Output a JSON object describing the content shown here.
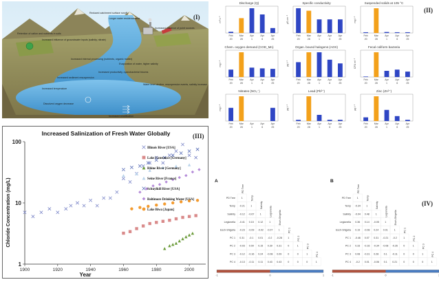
{
  "panel_i": {
    "label": "(I)",
    "annotations": [
      "Reduced catchment surface runoff",
      "Longer water residence time",
      "Increased influence of point sources",
      "Retention of cation and nutrients in soils",
      "Increased influence of groundwater inputs (salinity, nitrate)",
      "Increased internal processing (nutrients, organic matter)",
      "Evaporation of water, higher salinity",
      "Increased productivity, cyanobacterial blooms",
      "Water level decline, resuspension events, salinity increase",
      "Increased temperature",
      "Increased sediment resuspension",
      "Dissolved oxygen decrease",
      "Increased stratification"
    ]
  },
  "panel_ii": {
    "label": "(II)",
    "chart_data": [
      {
        "type": "bar",
        "title": "Discharge (Q)",
        "ylabel": "m³ s⁻¹",
        "categories": [
          "Feb 20",
          "Mar 28",
          "Apr 1",
          "Apr 6",
          "Apr 25"
        ],
        "values": [
          5,
          60,
          100,
          75,
          20
        ],
        "highlight_index": 1
      },
      {
        "type": "bar",
        "title": "Specific conductivity",
        "ylabel": "µS cm⁻¹",
        "categories": [
          "Feb 20",
          "Mar 28",
          "Apr 1",
          "Apr 6",
          "Apr 25"
        ],
        "values": [
          100,
          90,
          55,
          55,
          55
        ],
        "highlight_index": 1
      },
      {
        "type": "bar",
        "title": "Suspended solids at 105 °C",
        "ylabel": "mg l⁻¹",
        "categories": [
          "Feb 20",
          "Mar 28",
          "Apr 1",
          "Apr 6",
          "Apr 25"
        ],
        "values": [
          3,
          100,
          4,
          3,
          3
        ],
        "highlight_index": 1
      },
      {
        "type": "bar",
        "title": "Chem. oxygen demand (COD_Mn)",
        "ylabel": "mg l⁻¹",
        "categories": [
          "Feb 20",
          "Mar 28",
          "Apr 1",
          "Apr 6",
          "Apr 25"
        ],
        "values": [
          30,
          100,
          38,
          35,
          33
        ],
        "highlight_index": 1
      },
      {
        "type": "bar",
        "title": "Organ. bound halogens (AOX)",
        "ylabel": "µg l⁻¹",
        "categories": [
          "Feb 20",
          "Mar 28",
          "Apr 1",
          "Apr 6",
          "Apr 25"
        ],
        "values": [
          60,
          100,
          100,
          70,
          55
        ],
        "highlight_index": 1
      },
      {
        "type": "bar",
        "title": "Fecal coliform bacteria",
        "ylabel": "CFU ml⁻¹",
        "categories": [
          "Feb 20",
          "Mar 28",
          "Apr 1",
          "Apr 6",
          "Apr 25"
        ],
        "values": [
          2,
          100,
          25,
          30,
          22
        ],
        "highlight_index": 1
      },
      {
        "type": "bar",
        "title": "Nitrates (NO₃⁻)",
        "ylabel": "mg l⁻¹",
        "categories": [
          "Feb 20",
          "Mar 28",
          "Apr 1",
          "Apr 6",
          "Apr 25"
        ],
        "values": [
          40,
          75,
          0,
          0,
          40
        ],
        "highlight_index": 1
      },
      {
        "type": "bar",
        "title": "Lead (Pb²⁺)",
        "ylabel": "µg l⁻¹",
        "categories": [
          "Feb 20",
          "Mar 28",
          "Apr 1",
          "Apr 6",
          "Apr 25"
        ],
        "values": [
          5,
          100,
          25,
          5,
          5
        ],
        "highlight_index": 1
      },
      {
        "type": "bar",
        "title": "Zinc (Zn²⁺)",
        "ylabel": "µg l⁻¹",
        "categories": [
          "Feb 20",
          "Mar 28",
          "Apr 1",
          "Apr 6",
          "Apr 25"
        ],
        "values": [
          15,
          100,
          45,
          20,
          5
        ],
        "highlight_index": 1
      }
    ]
  },
  "panel_iii": {
    "label": "(III)",
    "chart_data": {
      "type": "scatter",
      "title": "Increased Salinization of Fresh Water Globally",
      "xlabel": "Year",
      "ylabel": "Chloride Concentration (mg/L)",
      "xlim": [
        1900,
        2010
      ],
      "ylim": [
        1,
        100
      ],
      "yscale": "log",
      "xticks": [
        "1900",
        "1920",
        "1940",
        "1960",
        "1980",
        "2000"
      ],
      "yticks": [
        "1",
        "10",
        "100"
      ],
      "series": [
        {
          "name": "Illinois River [USA]",
          "color": "#7b86c8",
          "marker": "x",
          "x": [
            1900,
            1905,
            1910,
            1915,
            1920,
            1925,
            1928,
            1932,
            1936,
            1940,
            1944,
            1948,
            1952,
            1956,
            1960,
            1964,
            1968,
            1972,
            1976,
            1980,
            1984,
            1988,
            1992,
            1996,
            2000,
            2004
          ],
          "y": [
            7,
            6,
            7,
            8,
            7,
            8,
            9,
            10,
            9,
            11,
            9,
            12,
            12,
            15,
            25,
            22,
            30,
            40,
            45,
            55,
            45,
            60,
            70,
            90,
            60,
            55
          ]
        },
        {
          "name": "Lake Constance [Germany]",
          "color": "#d98a8a",
          "marker": "square",
          "x": [
            1960,
            1964,
            1968,
            1972,
            1976,
            1980,
            1984,
            1988,
            1992,
            1996,
            2000,
            2004
          ],
          "y": [
            3.2,
            3.4,
            3.8,
            4.2,
            4.6,
            4.8,
            5,
            5.2,
            5.5,
            5.8,
            6,
            6.2
          ]
        },
        {
          "name": "Rhine River [Germany]",
          "color": "#6b9b3a",
          "marker": "triangle",
          "x": [
            1985,
            1988,
            1990,
            1992,
            1994,
            1996,
            1998,
            2000,
            2002
          ],
          "y": [
            1.8,
            2,
            2.1,
            2.2,
            2.4,
            2.6,
            2.8,
            3,
            3.2
          ]
        },
        {
          "name": "Seine River [France]",
          "color": "#b9d3ea",
          "marker": "triangle",
          "x": [
            1960,
            1968,
            1976,
            1984,
            1992,
            2000
          ],
          "y": [
            28,
            30,
            34,
            38,
            40,
            42
          ]
        },
        {
          "name": "Schuylkill River [USA]",
          "color": "#5a6fb8",
          "marker": "x",
          "x": [
            1960,
            1965,
            1970,
            1975,
            1980,
            1985,
            1990,
            1995,
            2000,
            2005
          ],
          "y": [
            35,
            38,
            40,
            45,
            50,
            55,
            60,
            65,
            70,
            75
          ]
        },
        {
          "name": "Baltimore Drinking Water [USA]",
          "color": "#b48ad8",
          "marker": "diamond",
          "x": [
            1970,
            1974,
            1978,
            1982,
            1986,
            1990,
            1994,
            1998,
            2002,
            2006
          ],
          "y": [
            15,
            17,
            19,
            20,
            22,
            24,
            26,
            28,
            32,
            35
          ]
        },
        {
          "name": "Lake Biwa [Japan]",
          "color": "#f39a2e",
          "marker": "circle",
          "x": [
            1965,
            1970,
            1975,
            1980,
            1985,
            1990,
            1995,
            2000,
            2005
          ],
          "y": [
            8,
            8.4,
            8.8,
            9.2,
            9.6,
            10,
            10.4,
            10.8,
            11
          ]
        }
      ]
    }
  },
  "panel_iv": {
    "label": "(IV)",
    "matrices": [
      {
        "letter": "A",
        "variables": [
          "PD Tree",
          "Temp",
          "Salinity",
          "Legionella",
          "Esch-Shigella",
          "PC 1",
          "PC 2",
          "PC 3",
          "PC 4"
        ],
        "rows": [
          [
            "1"
          ],
          [
            "-0.21",
            "1"
          ],
          [
            "-0.12",
            "-0.67",
            "1"
          ],
          [
            "-0.41",
            "0.15",
            "0.12",
            "1"
          ],
          [
            "-0.23",
            "-0.09",
            "-0.02",
            "-0.07",
            "1"
          ],
          [
            "0.31",
            "-0.1",
            "0.01",
            "-0.2",
            "-0.28",
            "1"
          ],
          [
            "-0.03",
            "0.09",
            "0.15",
            "0.39",
            "0.31",
            "0",
            "1"
          ],
          [
            "-0.12",
            "-0.16",
            "0.24",
            "-0.08",
            "0.09",
            "0",
            "0",
            "1"
          ],
          [
            "-0.13",
            "-0.11",
            "0.11",
            "0.43",
            "0.43",
            "0",
            "0",
            "0",
            "1"
          ]
        ],
        "scale_labels": [
          "-1",
          "0",
          "1"
        ]
      },
      {
        "letter": "B",
        "variables": [
          "PD Tree",
          "Temp",
          "Salinity",
          "Legionella",
          "Esch-Shigella",
          "PC 1",
          "PC 2",
          "PC 3",
          "PC 4"
        ],
        "rows": [
          [
            "1"
          ],
          [
            "-0.34",
            "1"
          ],
          [
            "-0.04",
            "0.48",
            "1"
          ],
          [
            "0.36",
            "0.14",
            "-0.05",
            "1"
          ],
          [
            "0.19",
            "-0.08",
            "0.24",
            "0.01",
            "1"
          ],
          [
            "-0.46",
            "0.07",
            "0.31",
            "-0.21",
            "-0.2",
            "1"
          ],
          [
            "0.33",
            "-0.16",
            "-0.34",
            "-0.08",
            "-0.26",
            "0",
            "1"
          ],
          [
            "0.08",
            "-0.31",
            "0.28",
            "0.1",
            "-0.11",
            "0",
            "0",
            "1"
          ],
          [
            "-0.2",
            "0.01",
            "-0.06",
            "0.1",
            "0.21",
            "0",
            "0",
            "0",
            "1"
          ]
        ],
        "scale_labels": [
          "-1",
          "0",
          "1"
        ]
      }
    ]
  }
}
